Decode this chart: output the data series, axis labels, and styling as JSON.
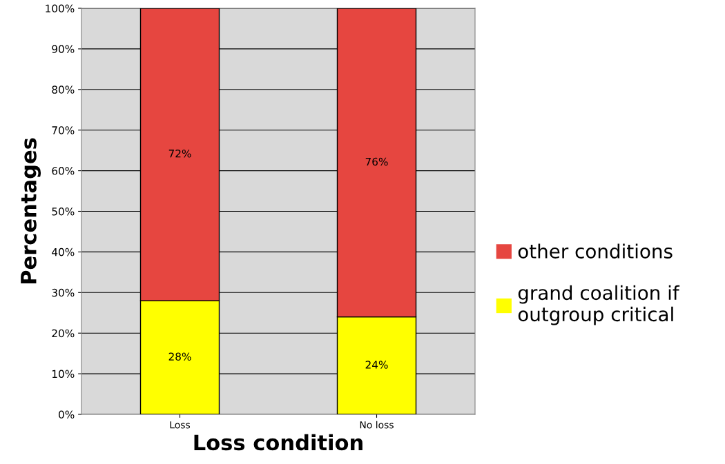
{
  "chart_data": {
    "type": "bar",
    "stacked": true,
    "xlabel": "Loss condition",
    "ylabel": "Percentages",
    "categories": [
      "Loss",
      "No loss"
    ],
    "series": [
      {
        "name": "grand coalition if\noutgroup critical",
        "color": "#ffff00",
        "values": [
          28,
          24
        ],
        "value_labels": [
          "28%",
          "24%"
        ]
      },
      {
        "name": "other conditions",
        "color": "#e64640",
        "values": [
          72,
          76
        ],
        "value_labels": [
          "72%",
          "76%"
        ]
      }
    ],
    "ylim": [
      0,
      100
    ],
    "yticks": [
      {
        "value": 0,
        "label": "0%"
      },
      {
        "value": 10,
        "label": "10%"
      },
      {
        "value": 20,
        "label": "20%"
      },
      {
        "value": 30,
        "label": "30%"
      },
      {
        "value": 40,
        "label": "40%"
      },
      {
        "value": 50,
        "label": "50%"
      },
      {
        "value": 60,
        "label": "60%"
      },
      {
        "value": 70,
        "label": "70%"
      },
      {
        "value": 80,
        "label": "80%"
      },
      {
        "value": 90,
        "label": "90%"
      },
      {
        "value": 100,
        "label": "100%"
      }
    ],
    "grid": "y",
    "legend": "right"
  }
}
